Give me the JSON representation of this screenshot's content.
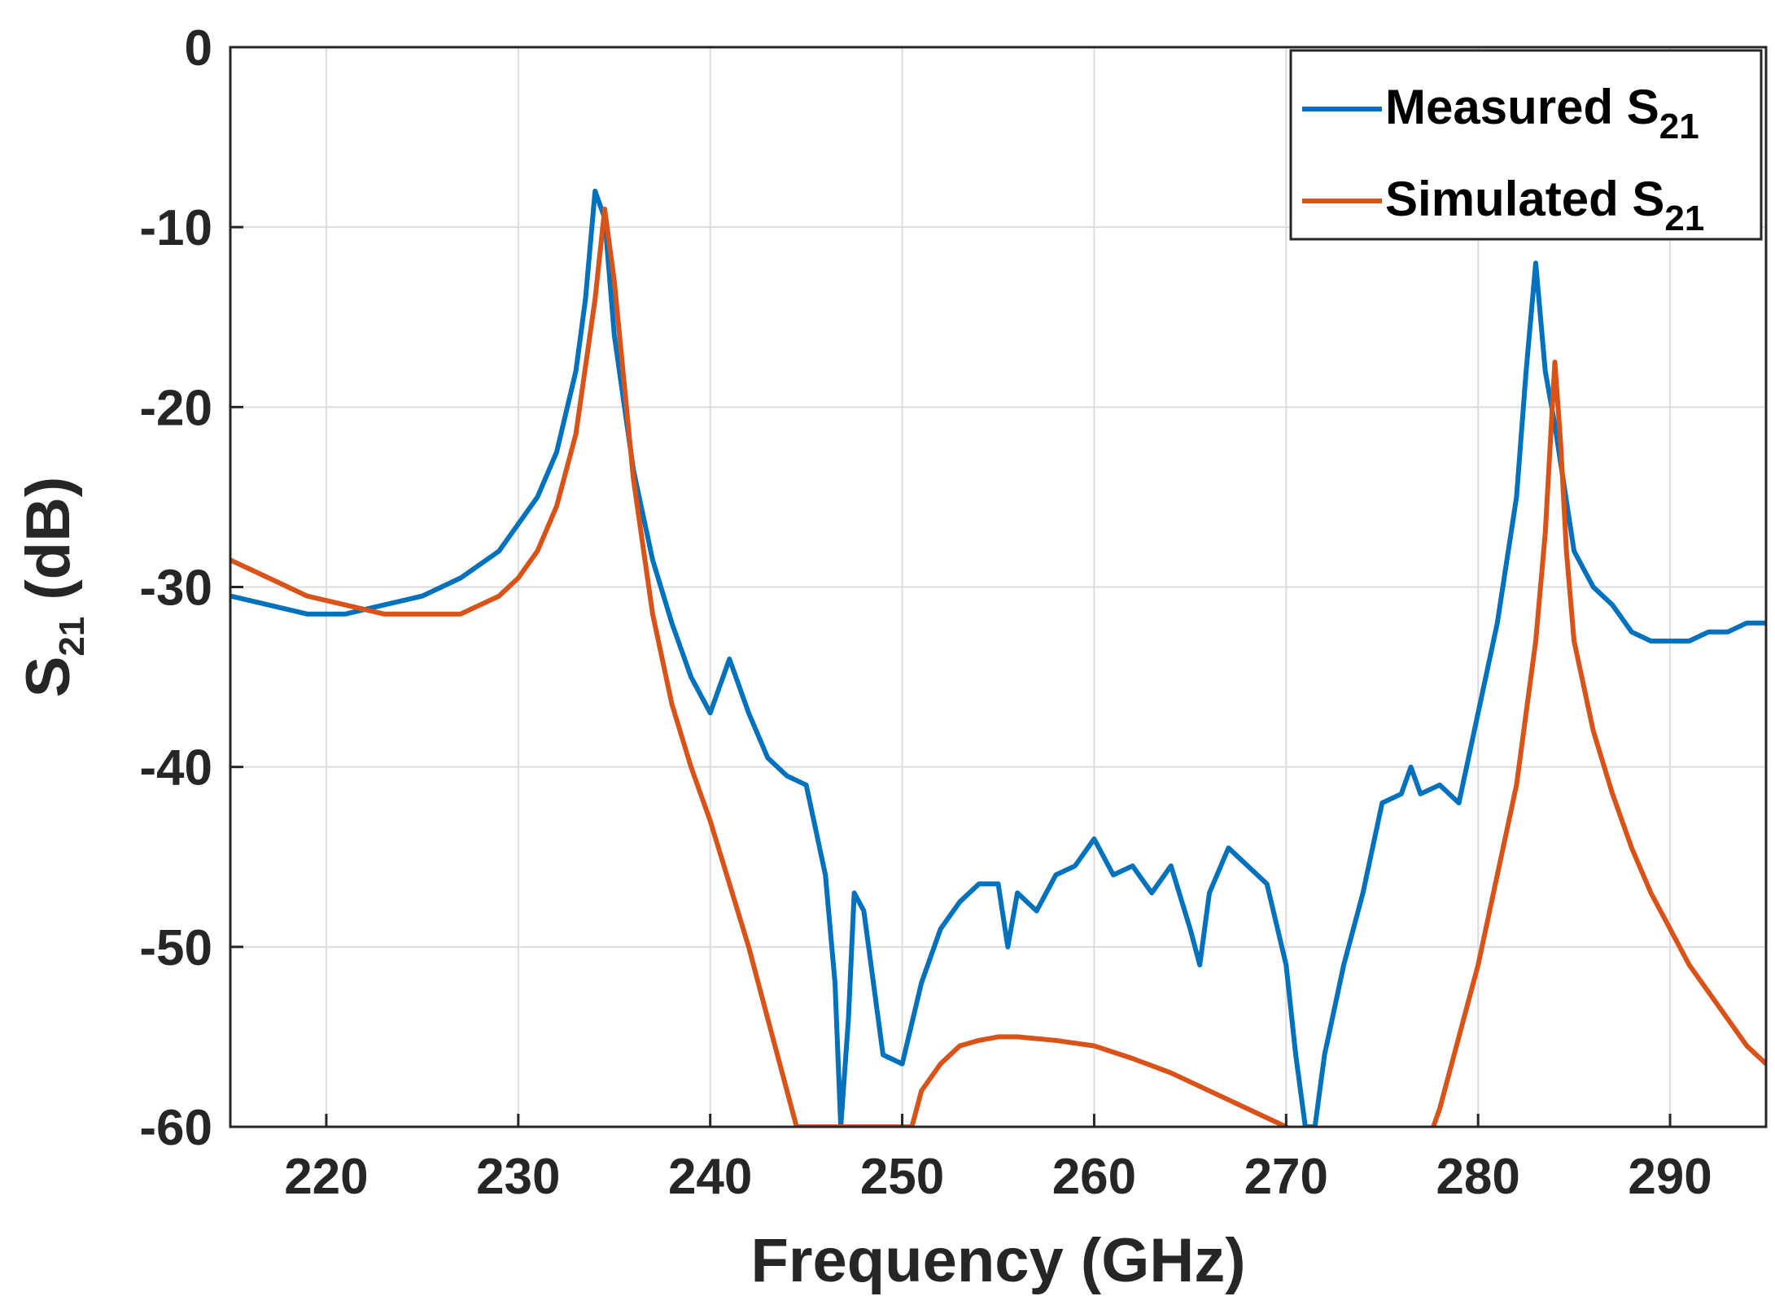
{
  "chart_data": {
    "type": "line",
    "xlabel": "Frequency (GHz)",
    "ylabel_main": "S",
    "ylabel_sub": "21",
    "ylabel_unit": "(dB)",
    "xlim": [
      215,
      295
    ],
    "ylim": [
      -60,
      0
    ],
    "grid": true,
    "legend_position": "top-right",
    "x_ticks": [
      220,
      230,
      240,
      250,
      260,
      270,
      280,
      290
    ],
    "x_tick_labels": [
      "220",
      "230",
      "240",
      "250",
      "260",
      "270",
      "280",
      "290"
    ],
    "y_ticks": [
      0,
      -10,
      -20,
      -30,
      -40,
      -50,
      -60
    ],
    "y_tick_labels": [
      "0",
      "-10",
      "-20",
      "-30",
      "-40",
      "-50",
      "-60"
    ],
    "series": [
      {
        "name": "Measured S21",
        "legend_main": "Measured S",
        "legend_sub": "21",
        "color": "#0072BD",
        "x": [
          215,
          217,
          219,
          221,
          223,
          225,
          227,
          229,
          230,
          231,
          232,
          233,
          233.5,
          234,
          234.5,
          235,
          236,
          237,
          238,
          239,
          240,
          241,
          242,
          243,
          244,
          245,
          246,
          246.5,
          246.8,
          247.2,
          247.5,
          248,
          249,
          250,
          251,
          252,
          253,
          254,
          255,
          255.5,
          256,
          257,
          258,
          259,
          260,
          261,
          262,
          263,
          264,
          265,
          265.5,
          266,
          267,
          268,
          269,
          270,
          270.5,
          271,
          271.5,
          272,
          273,
          274,
          275,
          276,
          276.5,
          277,
          278,
          279,
          280,
          281,
          282,
          282.5,
          283,
          283.5,
          284,
          285,
          286,
          287,
          288,
          289,
          290,
          291,
          292,
          293,
          294,
          295
        ],
        "y": [
          -30.5,
          -31,
          -31.5,
          -31.5,
          -31,
          -30.5,
          -29.5,
          -28,
          -26.5,
          -25,
          -22.5,
          -18,
          -14,
          -8,
          -9.5,
          -16,
          -23.5,
          -28.5,
          -32,
          -35,
          -37,
          -34,
          -37,
          -39.5,
          -40.5,
          -41,
          -46,
          -52,
          -60,
          -54,
          -47,
          -48,
          -56,
          -56.5,
          -52,
          -49,
          -47.5,
          -46.5,
          -46.5,
          -50,
          -47,
          -48,
          -46,
          -45.5,
          -44,
          -46,
          -45.5,
          -47,
          -45.5,
          -49,
          -51,
          -47,
          -44.5,
          -45.5,
          -46.5,
          -51,
          -56,
          -60,
          -60,
          -56,
          -51,
          -47,
          -42,
          -41.5,
          -40,
          -41.5,
          -41,
          -42,
          -37,
          -32,
          -25,
          -18,
          -12,
          -18,
          -21,
          -28,
          -30,
          -31,
          -32.5,
          -33,
          -33,
          -33,
          -32.5,
          -32.5,
          -32,
          -32
        ]
      },
      {
        "name": "Simulated S21",
        "legend_main": "Simulated S",
        "legend_sub": "21",
        "color": "#D95319",
        "x": [
          215,
          217,
          219,
          221,
          223,
          225,
          227,
          229,
          230,
          231,
          232,
          233,
          234,
          234.5,
          235,
          236,
          237,
          238,
          239,
          240,
          241,
          242,
          243,
          244,
          244.5,
          250.5,
          251,
          252,
          253,
          254,
          255,
          256,
          258,
          260,
          262,
          264,
          266,
          268,
          270,
          270.5,
          277.5,
          278,
          279,
          280,
          281,
          282,
          283,
          283.5,
          284,
          284.3,
          284.6,
          285,
          286,
          287,
          288,
          289,
          290,
          291,
          292,
          293,
          294,
          295
        ],
        "y": [
          -28.5,
          -29.5,
          -30.5,
          -31,
          -31.5,
          -31.5,
          -31.5,
          -30.5,
          -29.5,
          -28,
          -25.5,
          -21.5,
          -14,
          -9,
          -13,
          -24,
          -31.5,
          -36.5,
          -40,
          -43,
          -46.5,
          -50,
          -54,
          -58,
          -60,
          -60,
          -58,
          -56.5,
          -55.5,
          -55.2,
          -55,
          -55,
          -55.2,
          -55.5,
          -56.2,
          -57,
          -58,
          -59,
          -60,
          -60.5,
          -60.5,
          -59,
          -55,
          -51,
          -46,
          -41,
          -33,
          -27,
          -17.5,
          -22,
          -28,
          -33,
          -38,
          -41.5,
          -44.5,
          -47,
          -49,
          -51,
          -52.5,
          -54,
          -55.5,
          -56.5
        ]
      }
    ]
  }
}
